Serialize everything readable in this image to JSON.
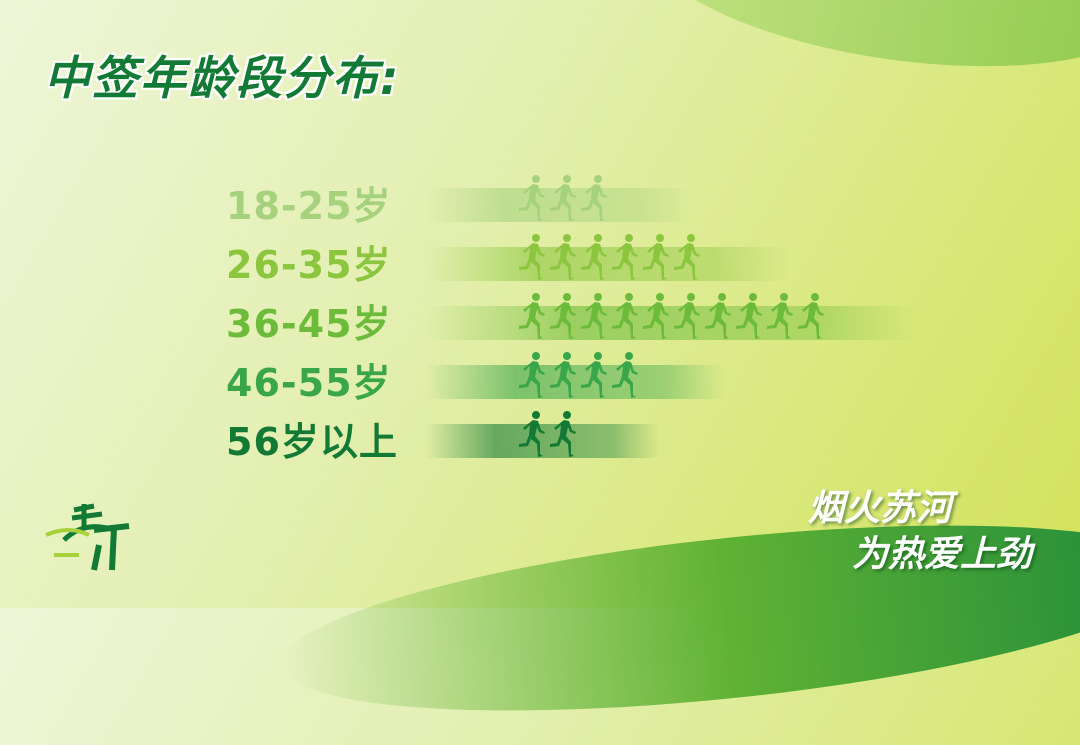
{
  "title": "中签年龄段分布:",
  "slogan": {
    "line1": "烟火苏河",
    "line2": "为热爱上劲"
  },
  "logo": {
    "text": "苏河半马"
  },
  "chart_data": {
    "type": "bar",
    "style": "pictogram",
    "categories": [
      "18-25岁",
      "26-35岁",
      "36-45岁",
      "46-55岁",
      "56岁以上"
    ],
    "values": [
      3,
      6,
      10,
      4,
      2
    ],
    "icon": "runner-icon",
    "colors": [
      "#a6d27e",
      "#8cc63f",
      "#6dbb3a",
      "#3aa64a",
      "#137a35"
    ]
  }
}
